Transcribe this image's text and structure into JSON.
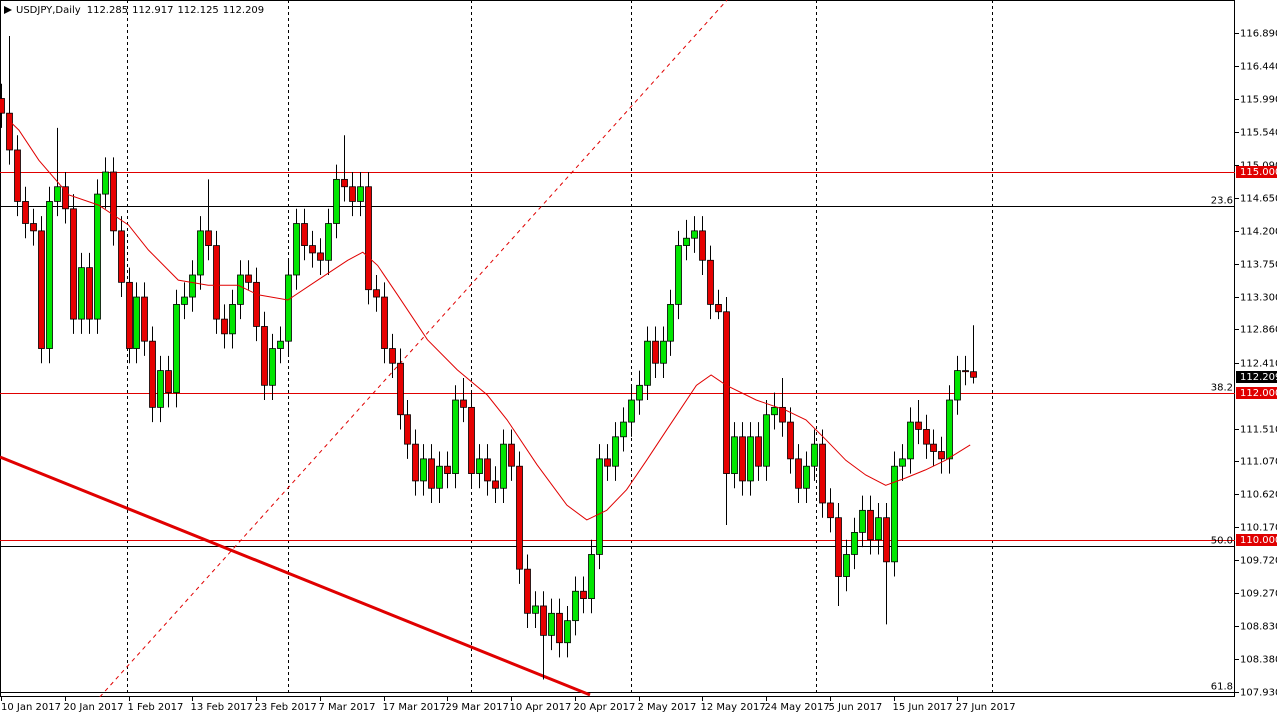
{
  "chart_data": {
    "type": "candlestick",
    "title": "USDJPY,Daily",
    "up_color": "#00e600",
    "down_color": "#e60000",
    "ma_color": "#e00000",
    "categories": [
      "10 Jan 2017",
      null,
      null,
      null,
      null,
      null,
      null,
      null,
      "20 Jan 2017",
      null,
      null,
      null,
      null,
      null,
      null,
      null,
      "1 Feb 2017",
      null,
      null,
      null,
      null,
      null,
      null,
      null,
      "13 Feb 2017",
      null,
      null,
      null,
      null,
      null,
      null,
      null,
      "23 Feb 2017",
      null,
      null,
      null,
      null,
      null,
      null,
      null,
      "7 Mar 2017",
      null,
      null,
      null,
      null,
      null,
      null,
      null,
      "17 Mar 2017",
      null,
      null,
      null,
      null,
      null,
      null,
      null,
      "29 Mar 2017",
      null,
      null,
      null,
      null,
      null,
      null,
      null,
      "10 Apr 2017",
      null,
      null,
      null,
      null,
      null,
      null,
      null,
      "20 Apr 2017",
      null,
      null,
      null,
      null,
      null,
      null,
      null,
      "2 May 2017",
      null,
      null,
      null,
      null,
      null,
      null,
      null,
      "12 May 2017",
      null,
      null,
      null,
      null,
      null,
      null,
      null,
      "24 May 2017",
      null,
      null,
      null,
      null,
      null,
      null,
      null,
      "5 Jun 2017",
      null,
      null,
      null,
      null,
      null,
      null,
      null,
      "15 Jun 2017",
      null,
      null,
      null,
      null,
      null,
      null,
      null,
      "27 Jun 2017",
      null,
      null
    ],
    "open": [
      116.0,
      115.8,
      115.3,
      114.6,
      114.3,
      114.2,
      112.6,
      114.6,
      114.8,
      114.5,
      113.0,
      113.7,
      113.0,
      114.7,
      115.0,
      114.2,
      113.5,
      112.6,
      113.3,
      112.7,
      111.8,
      112.3,
      112.0,
      113.2,
      113.3,
      113.6,
      114.2,
      114.0,
      113.0,
      112.8,
      113.2,
      113.6,
      113.5,
      112.9,
      112.1,
      112.6,
      112.7,
      113.6,
      114.3,
      114.0,
      113.9,
      113.8,
      114.3,
      114.9,
      114.8,
      114.6,
      114.8,
      113.4,
      113.3,
      112.6,
      112.4,
      111.7,
      111.3,
      110.8,
      111.1,
      110.7,
      111.0,
      110.9,
      111.9,
      111.8,
      110.9,
      111.1,
      110.8,
      110.7,
      111.3,
      111.0,
      109.6,
      109.0,
      109.1,
      108.7,
      109.0,
      108.6,
      108.9,
      109.3,
      109.2,
      109.8,
      111.1,
      111.0,
      111.4,
      111.6,
      111.9,
      112.1,
      112.7,
      112.4,
      112.7,
      113.2,
      114.0,
      114.1,
      114.2,
      113.8,
      113.2,
      113.1,
      110.9,
      111.4,
      110.8,
      111.4,
      111.0,
      111.7,
      111.8,
      111.6,
      111.1,
      110.7,
      111.0,
      111.3,
      110.5,
      110.3,
      109.5,
      109.8,
      110.1,
      110.4,
      110.0,
      110.3,
      109.7,
      111.0,
      111.1,
      111.6,
      111.5,
      111.3,
      111.2,
      111.1,
      111.9,
      112.3,
      112.285
    ],
    "high": [
      116.2,
      116.85,
      115.5,
      114.8,
      114.5,
      114.4,
      114.8,
      115.6,
      115.0,
      114.7,
      113.9,
      113.9,
      114.9,
      115.2,
      115.2,
      114.4,
      113.7,
      113.5,
      113.5,
      112.9,
      112.5,
      112.5,
      113.4,
      113.5,
      113.8,
      114.4,
      114.9,
      114.2,
      113.2,
      113.4,
      113.8,
      113.8,
      113.7,
      113.1,
      112.8,
      112.9,
      113.8,
      114.5,
      114.5,
      114.2,
      114.1,
      114.5,
      115.1,
      115.5,
      115.0,
      115.0,
      115.0,
      113.6,
      113.5,
      112.8,
      112.6,
      111.9,
      111.5,
      111.3,
      111.3,
      111.2,
      111.2,
      112.1,
      112.2,
      112.0,
      111.3,
      111.3,
      111.0,
      111.5,
      111.5,
      111.2,
      109.8,
      109.3,
      109.3,
      109.2,
      109.2,
      109.1,
      109.5,
      109.5,
      110.0,
      111.3,
      111.3,
      111.6,
      111.8,
      112.1,
      112.3,
      112.9,
      112.9,
      112.9,
      113.4,
      114.2,
      114.35,
      114.4,
      114.4,
      114.0,
      113.4,
      113.3,
      111.6,
      111.6,
      111.6,
      111.6,
      111.9,
      112.0,
      112.2,
      111.8,
      111.3,
      111.2,
      111.5,
      111.5,
      110.7,
      110.5,
      110.0,
      110.3,
      110.6,
      110.6,
      110.5,
      110.5,
      111.2,
      111.3,
      111.8,
      111.9,
      111.7,
      111.5,
      111.4,
      112.1,
      112.5,
      112.5,
      112.917
    ],
    "low": [
      115.6,
      115.1,
      114.4,
      114.1,
      114.0,
      112.4,
      112.4,
      114.4,
      114.3,
      112.8,
      112.8,
      112.8,
      112.8,
      114.5,
      114.0,
      113.3,
      112.4,
      112.4,
      112.5,
      111.6,
      111.6,
      111.8,
      111.8,
      113.0,
      113.1,
      113.4,
      113.8,
      112.8,
      112.6,
      112.6,
      113.0,
      113.4,
      112.7,
      111.9,
      111.9,
      112.4,
      112.5,
      113.4,
      113.8,
      113.7,
      113.6,
      113.6,
      114.1,
      114.6,
      114.4,
      114.4,
      113.2,
      113.1,
      112.4,
      112.2,
      111.5,
      111.1,
      110.6,
      110.6,
      110.5,
      110.5,
      110.7,
      110.7,
      111.6,
      110.7,
      110.7,
      110.6,
      110.5,
      110.5,
      110.8,
      109.4,
      108.8,
      108.8,
      108.1,
      108.5,
      108.4,
      108.4,
      108.7,
      109.0,
      109.0,
      109.6,
      110.8,
      110.8,
      111.2,
      111.4,
      111.7,
      111.9,
      112.2,
      112.2,
      112.5,
      113.0,
      113.8,
      113.9,
      113.6,
      113.0,
      113.0,
      110.2,
      110.7,
      110.6,
      110.6,
      110.8,
      110.8,
      111.5,
      111.4,
      110.9,
      110.5,
      110.5,
      110.8,
      110.3,
      110.1,
      109.1,
      109.3,
      109.6,
      109.9,
      109.8,
      109.8,
      108.85,
      109.5,
      110.8,
      110.9,
      111.3,
      111.1,
      111.0,
      110.9,
      110.9,
      111.7,
      112.1,
      112.125
    ],
    "close": [
      115.8,
      115.3,
      114.6,
      114.3,
      114.2,
      112.6,
      114.6,
      114.8,
      114.5,
      113.0,
      113.7,
      113.0,
      114.7,
      115.0,
      114.2,
      113.5,
      112.6,
      113.3,
      112.7,
      111.8,
      112.3,
      112.0,
      113.2,
      113.3,
      113.6,
      114.2,
      114.0,
      113.0,
      112.8,
      113.2,
      113.6,
      113.5,
      112.9,
      112.1,
      112.6,
      112.7,
      113.6,
      114.3,
      114.0,
      113.9,
      113.8,
      114.3,
      114.9,
      114.8,
      114.6,
      114.8,
      113.4,
      113.3,
      112.6,
      112.4,
      111.7,
      111.3,
      110.8,
      111.1,
      110.7,
      111.0,
      110.9,
      111.9,
      111.8,
      110.9,
      111.1,
      110.8,
      110.7,
      111.3,
      111.0,
      109.6,
      109.0,
      109.1,
      108.7,
      109.0,
      108.6,
      108.9,
      109.3,
      109.2,
      109.8,
      111.1,
      111.0,
      111.4,
      111.6,
      111.9,
      112.1,
      112.7,
      112.4,
      112.7,
      113.2,
      114.0,
      114.1,
      114.2,
      113.8,
      113.2,
      113.1,
      110.9,
      111.4,
      110.8,
      111.4,
      111.0,
      111.7,
      111.8,
      111.6,
      111.1,
      110.7,
      111.0,
      111.3,
      110.5,
      110.3,
      109.5,
      109.8,
      110.1,
      110.4,
      110.0,
      110.3,
      109.7,
      111.0,
      111.1,
      111.6,
      111.5,
      111.3,
      111.2,
      111.1,
      111.9,
      112.3,
      112.285,
      112.209
    ],
    "ma": {
      "x": [
        1,
        2.25,
        4.75,
        8.5,
        12.25,
        16,
        18.5,
        22.25,
        26,
        29.75,
        32.25,
        36,
        39.75,
        43.5,
        45.4,
        47.25,
        49.75,
        53.5,
        57.25,
        61,
        63.5,
        67.25,
        71,
        73.5,
        76,
        78.5,
        81,
        83.5,
        87.25,
        89.1,
        91,
        94.75,
        98.5,
        101,
        103.5,
        106,
        108.5,
        111,
        113.5,
        116,
        118.5,
        121.6
      ],
      "values": [
        115.7,
        115.57,
        115.16,
        114.69,
        114.55,
        114.28,
        113.94,
        113.53,
        113.46,
        113.46,
        113.33,
        113.26,
        113.53,
        113.8,
        113.91,
        113.73,
        113.33,
        112.72,
        112.31,
        111.97,
        111.63,
        111.02,
        110.47,
        110.27,
        110.4,
        110.68,
        111.08,
        111.49,
        112.1,
        112.24,
        112.1,
        111.9,
        111.76,
        111.63,
        111.36,
        111.08,
        110.88,
        110.74,
        110.84,
        110.95,
        111.08,
        111.29
      ]
    },
    "ylim": [
      107.862,
      117.339
    ],
    "yticks": [
      {
        "value": 116.89,
        "label": "116.890"
      },
      {
        "value": 116.44,
        "label": "116.440"
      },
      {
        "value": 115.99,
        "label": "115.990"
      },
      {
        "value": 115.54,
        "label": "115.540"
      },
      {
        "value": 115.09,
        "label": "115.090"
      },
      {
        "value": 114.65,
        "label": "114.650"
      },
      {
        "value": 114.2,
        "label": "114.200"
      },
      {
        "value": 113.75,
        "label": "113.750"
      },
      {
        "value": 113.3,
        "label": "113.300"
      },
      {
        "value": 112.86,
        "label": "112.860"
      },
      {
        "value": 112.41,
        "label": "112.410"
      },
      {
        "value": 111.51,
        "label": "111.510"
      },
      {
        "value": 111.07,
        "label": "111.070"
      },
      {
        "value": 110.62,
        "label": "110.620"
      },
      {
        "value": 110.17,
        "label": "110.170"
      },
      {
        "value": 109.72,
        "label": "109.720"
      },
      {
        "value": 109.27,
        "label": "109.270"
      },
      {
        "value": 108.83,
        "label": "108.830"
      },
      {
        "value": 108.38,
        "label": "108.380"
      },
      {
        "value": 107.93,
        "label": "107.930"
      }
    ],
    "xgrid": [
      15.8,
      36,
      59,
      79,
      102.3,
      124.3
    ],
    "levels": [
      {
        "value": 115,
        "label": "115.000"
      },
      {
        "value": 112,
        "label": "112.000"
      },
      {
        "value": 110,
        "label": "110.000"
      }
    ],
    "fibo": [
      {
        "price": 114.54,
        "label": 23.6
      },
      {
        "price": 111.99,
        "label": 38.2
      },
      {
        "price": 109.92,
        "label": "50.0"
      },
      {
        "price": 107.93,
        "label": 61.8
      }
    ],
    "trendlines": [
      {
        "x": [
          12.4,
          91.1
        ],
        "values": [
          107.862,
          117.339
        ],
        "dashed": true
      },
      {
        "x": [
          -0.13,
          73.9
        ],
        "values": [
          111.125,
          107.89
        ],
        "dashed": false
      }
    ]
  }
}
